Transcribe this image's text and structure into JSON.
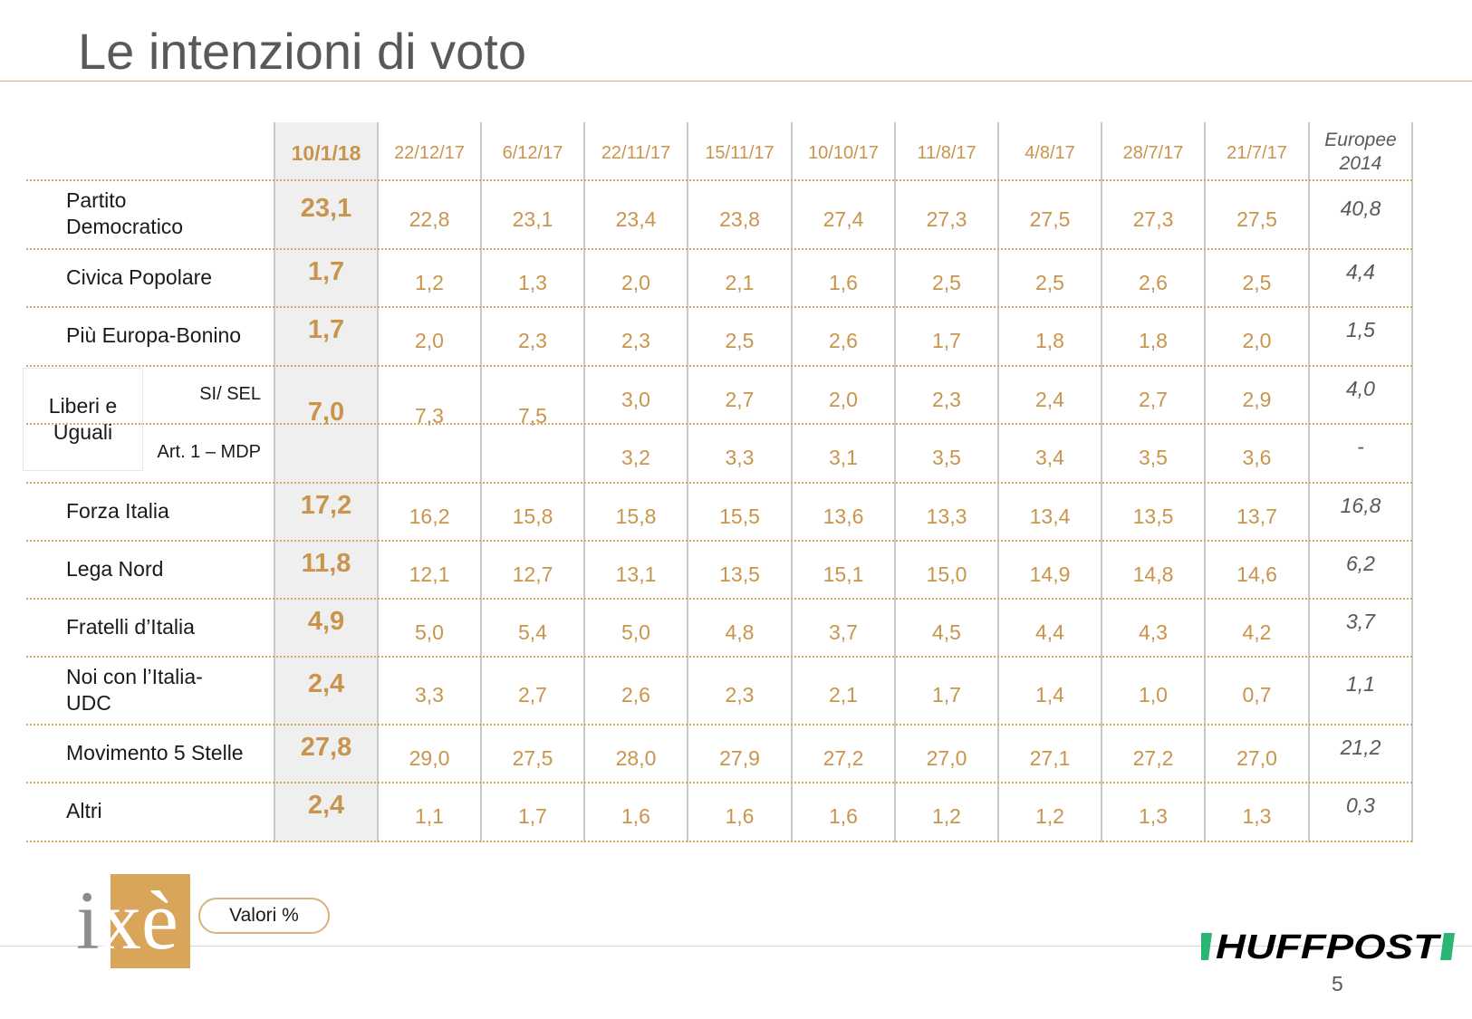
{
  "page": {
    "title": "Le intenzioni di voto",
    "page_number": "5"
  },
  "table": {
    "columns": [
      "10/1/18",
      "22/12/17",
      "6/12/17",
      "22/11/17",
      "15/11/17",
      "10/10/17",
      "11/8/17",
      "4/8/17",
      "28/7/17",
      "21/7/17"
    ],
    "europee_header": [
      "Europee",
      "2014"
    ],
    "rows": [
      {
        "party": [
          "Partito",
          "Democratico"
        ],
        "values": [
          "23,1",
          "22,8",
          "23,1",
          "23,4",
          "23,8",
          "27,4",
          "27,3",
          "27,5",
          "27,3",
          "27,5"
        ],
        "europee": "40,8"
      },
      {
        "party": [
          "Civica Popolare"
        ],
        "values": [
          "1,7",
          "1,2",
          "1,3",
          "2,0",
          "2,1",
          "1,6",
          "2,5",
          "2,5",
          "2,6",
          "2,5"
        ],
        "europee": "4,4"
      },
      {
        "party": [
          "Più Europa-Bonino"
        ],
        "values": [
          "1,7",
          "2,0",
          "2,3",
          "2,3",
          "2,5",
          "2,6",
          "1,7",
          "1,8",
          "1,8",
          "2,0"
        ],
        "europee": "1,5"
      }
    ],
    "liberi_uguali": {
      "group_label": [
        "Liberi e",
        "Uguali"
      ],
      "main": "7,0",
      "merged": [
        "7,3",
        "7,5"
      ],
      "sub_rows": [
        {
          "label": "SI/ SEL",
          "values": [
            "3,0",
            "2,7",
            "2,0",
            "2,3",
            "2,4",
            "2,7",
            "2,9"
          ],
          "europee": "4,0"
        },
        {
          "label": "Art. 1 – MDP",
          "values": [
            "3,2",
            "3,3",
            "3,1",
            "3,5",
            "3,4",
            "3,5",
            "3,6"
          ],
          "europee": "-"
        }
      ]
    },
    "rows_after": [
      {
        "party": [
          "Forza Italia"
        ],
        "values": [
          "17,2",
          "16,2",
          "15,8",
          "15,8",
          "15,5",
          "13,6",
          "13,3",
          "13,4",
          "13,5",
          "13,7"
        ],
        "europee": "16,8"
      },
      {
        "party": [
          "Lega Nord"
        ],
        "values": [
          "11,8",
          "12,1",
          "12,7",
          "13,1",
          "13,5",
          "15,1",
          "15,0",
          "14,9",
          "14,8",
          "14,6"
        ],
        "europee": "6,2"
      },
      {
        "party": [
          "Fratelli d’Italia"
        ],
        "values": [
          "4,9",
          "5,0",
          "5,4",
          "5,0",
          "4,8",
          "3,7",
          "4,5",
          "4,4",
          "4,3",
          "4,2"
        ],
        "europee": "3,7"
      },
      {
        "party": [
          "Noi con l’Italia-",
          "UDC"
        ],
        "values": [
          "2,4",
          "3,3",
          "2,7",
          "2,6",
          "2,3",
          "2,1",
          "1,7",
          "1,4",
          "1,0",
          "0,7"
        ],
        "europee": "1,1"
      },
      {
        "party": [
          "Movimento 5 Stelle"
        ],
        "values": [
          "27,8",
          "29,0",
          "27,5",
          "28,0",
          "27,9",
          "27,2",
          "27,0",
          "27,1",
          "27,2",
          "27,0"
        ],
        "europee": "21,2"
      },
      {
        "party": [
          "Altri"
        ],
        "values": [
          "2,4",
          "1,1",
          "1,7",
          "1,6",
          "1,6",
          "1,6",
          "1,2",
          "1,2",
          "1,3",
          "1,3"
        ],
        "europee": "0,3"
      }
    ]
  },
  "footer": {
    "badge": "Valori %",
    "logo_left": "ixè",
    "logo_right": "HUFFPOST"
  },
  "colors": {
    "accent": "#c9954c",
    "gold_logo": "#d9a55a",
    "huffpost_green": "#2ab573",
    "text_gray": "#595959"
  }
}
